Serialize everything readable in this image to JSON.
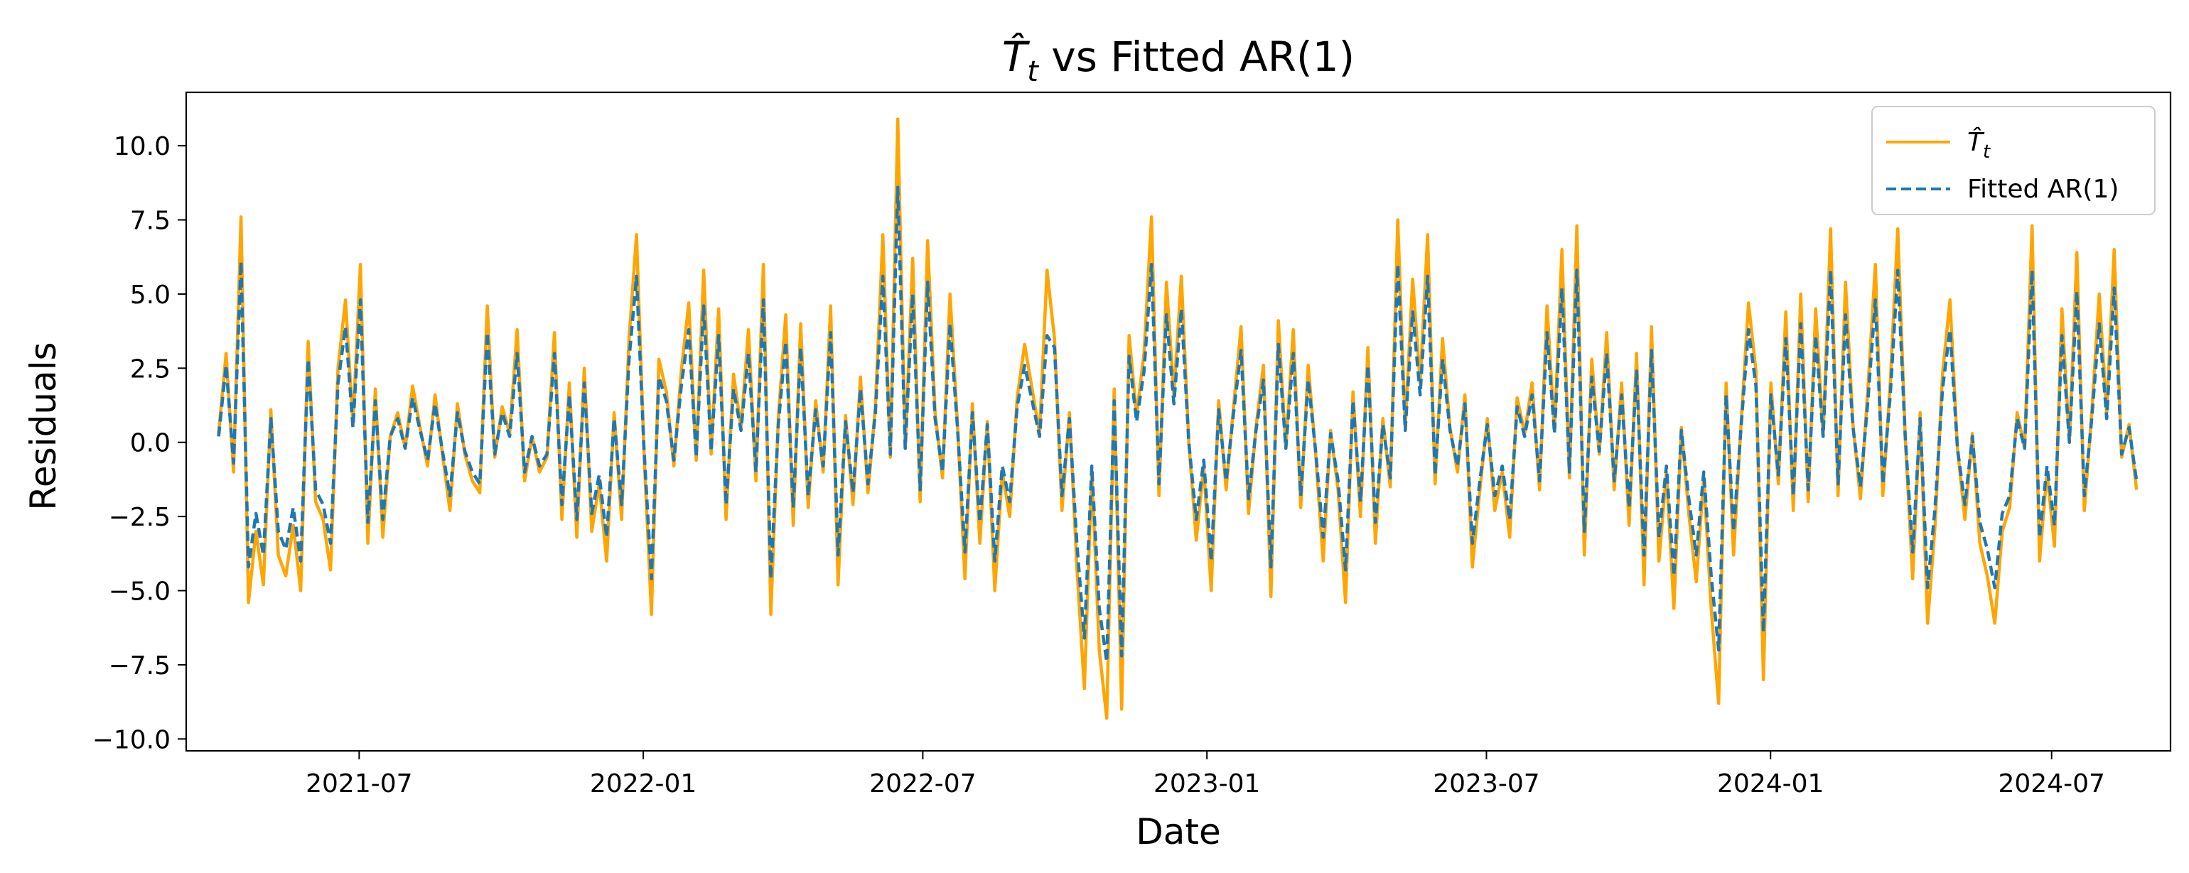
{
  "chart_data": {
    "type": "line",
    "title_main": "T̂",
    "title_sub": "t",
    "title_rest": " vs Fitted AR(1)",
    "xlabel": "Date",
    "ylabel": "Residuals",
    "xlim": [
      "2021-03-11",
      "2024-09-16"
    ],
    "ylim": [
      -10.4,
      11.8
    ],
    "x_ticks": [
      "2021-07",
      "2022-01",
      "2022-07",
      "2023-01",
      "2023-07",
      "2024-01",
      "2024-07"
    ],
    "y_ticks": [
      "10.0",
      "7.5",
      "5.0",
      "2.5",
      "0.0",
      "−2.5",
      "−5.0",
      "−7.5",
      "−10.0"
    ],
    "grid": false,
    "legend_position": "upper right",
    "series": [
      {
        "name_main": "T̂",
        "name_sub": "t",
        "color": "#ffa500",
        "style": "solid",
        "x_start": "2021-04-01",
        "x_end": "2024-08-25",
        "values": [
          0.3,
          3.0,
          -1.0,
          7.6,
          -5.4,
          -3.0,
          -4.8,
          1.1,
          -3.8,
          -4.5,
          -2.8,
          -5.0,
          3.4,
          -2.0,
          -2.6,
          -4.3,
          2.5,
          4.8,
          0.6,
          6.0,
          -3.4,
          1.8,
          -3.2,
          0.2,
          1.0,
          -0.2,
          1.9,
          0.5,
          -0.8,
          1.6,
          -0.4,
          -2.3,
          1.3,
          -0.4,
          -1.3,
          -1.7,
          4.6,
          -0.5,
          1.2,
          0.3,
          3.8,
          -1.3,
          0.2,
          -1.0,
          -0.5,
          3.7,
          -2.6,
          2.0,
          -3.2,
          2.5,
          -3.0,
          -1.4,
          -4.0,
          1.0,
          -2.6,
          3.5,
          7.0,
          -0.3,
          -5.8,
          2.8,
          1.7,
          -0.8,
          2.4,
          4.7,
          -0.6,
          5.8,
          -0.4,
          4.5,
          -2.6,
          2.3,
          0.5,
          3.8,
          -1.3,
          6.0,
          -5.8,
          0.8,
          4.3,
          -2.8,
          4.0,
          -2.2,
          1.4,
          -1.0,
          4.6,
          -4.8,
          0.9,
          -2.1,
          2.2,
          -1.7,
          1.2,
          7.0,
          -0.5,
          10.9,
          -0.2,
          6.2,
          -2.0,
          6.8,
          1.0,
          -1.2,
          5.0,
          0.6,
          -4.6,
          1.3,
          -3.4,
          0.7,
          -5.0,
          -1.0,
          -2.5,
          1.5,
          3.3,
          1.8,
          0.3,
          5.8,
          3.5,
          -2.3,
          1.0,
          -4.2,
          -8.3,
          -1.0,
          -7.0,
          -9.3,
          1.8,
          -9.0,
          3.6,
          0.9,
          3.0,
          7.6,
          -1.8,
          5.4,
          1.6,
          5.6,
          0.0,
          -3.3,
          -0.8,
          -5.0,
          1.4,
          -1.6,
          1.2,
          3.9,
          -2.4,
          0.5,
          2.6,
          -5.2,
          4.1,
          -0.2,
          3.8,
          -2.2,
          2.6,
          -0.4,
          -4.0,
          0.4,
          -1.6,
          -5.4,
          1.7,
          -2.5,
          3.2,
          -3.4,
          0.8,
          -1.5,
          7.5,
          0.5,
          5.5,
          2.0,
          7.0,
          -1.4,
          3.5,
          0.5,
          -1.0,
          1.6,
          -4.2,
          -1.6,
          0.8,
          -2.3,
          -1.0,
          -3.2,
          1.5,
          0.3,
          2.0,
          -1.6,
          4.6,
          0.4,
          6.5,
          -1.2,
          7.3,
          -3.8,
          2.8,
          -0.4,
          3.7,
          -1.6,
          2.0,
          -2.8,
          3.0,
          -4.8,
          3.9,
          -4.0,
          -1.0,
          -5.6,
          0.5,
          -2.4,
          -4.7,
          -1.2,
          -5.6,
          -8.8,
          2.0,
          -3.8,
          0.6,
          4.7,
          2.4,
          -8.0,
          2.0,
          -1.4,
          4.4,
          -2.3,
          5.0,
          -2.0,
          4.5,
          0.2,
          7.2,
          -1.8,
          5.4,
          0.6,
          -1.9,
          1.8,
          6.0,
          -1.8,
          2.0,
          7.2,
          0.2,
          -4.6,
          1.0,
          -6.1,
          -2.8,
          2.3,
          4.8,
          -0.2,
          -2.6,
          0.3,
          -3.4,
          -4.5,
          -6.1,
          -3.0,
          -2.2,
          1.0,
          -0.2,
          7.3,
          -4.0,
          -1.0,
          -3.5,
          4.5,
          0.0,
          6.4,
          -2.3,
          1.0,
          5.0,
          1.0,
          6.5,
          -0.5,
          0.6,
          -1.6
        ]
      },
      {
        "name": "Fitted AR(1)",
        "color": "#1f77b4",
        "style": "dashed",
        "x_start": "2021-04-01",
        "x_end": "2024-08-25",
        "values": [
          0.2,
          2.6,
          -0.7,
          6.1,
          -4.2,
          -2.4,
          -3.8,
          0.8,
          -3.0,
          -3.6,
          -2.2,
          -4.0,
          2.8,
          -1.6,
          -2.1,
          -3.4,
          2.0,
          3.9,
          0.5,
          4.8,
          -2.7,
          1.4,
          -2.6,
          0.2,
          0.8,
          -0.2,
          1.5,
          0.4,
          -0.6,
          1.3,
          -0.3,
          -1.8,
          1.0,
          -0.3,
          -1.0,
          -1.4,
          3.7,
          -0.4,
          1.0,
          0.2,
          3.0,
          -1.0,
          0.2,
          -0.8,
          -0.4,
          3.0,
          -2.1,
          1.6,
          -2.6,
          2.0,
          -2.4,
          -1.1,
          -3.2,
          0.8,
          -2.1,
          2.8,
          5.6,
          -0.2,
          -4.6,
          2.2,
          1.4,
          -0.6,
          1.9,
          3.8,
          -0.5,
          4.6,
          -0.3,
          3.6,
          -2.1,
          1.8,
          0.4,
          3.0,
          -1.0,
          4.8,
          -4.6,
          0.6,
          3.4,
          -2.2,
          3.2,
          -1.8,
          1.1,
          -0.8,
          3.7,
          -3.8,
          0.7,
          -1.7,
          1.8,
          -1.4,
          1.0,
          5.6,
          -0.4,
          8.6,
          -0.2,
          5.0,
          -1.6,
          5.4,
          0.8,
          -1.0,
          4.0,
          0.5,
          -3.7,
          1.0,
          -2.7,
          0.6,
          -4.0,
          -0.8,
          -2.0,
          1.2,
          2.6,
          1.4,
          0.2,
          3.6,
          3.2,
          -1.8,
          0.8,
          -3.4,
          -6.6,
          -0.8,
          -5.6,
          -7.4,
          1.4,
          -7.2,
          2.9,
          0.7,
          2.4,
          6.0,
          -1.4,
          4.3,
          1.3,
          4.5,
          0.0,
          -2.6,
          -0.6,
          -4.0,
          1.1,
          -1.3,
          1.0,
          3.1,
          -1.9,
          0.4,
          2.1,
          -4.2,
          3.3,
          -0.2,
          3.0,
          -1.8,
          2.1,
          -0.3,
          -3.2,
          0.3,
          -1.3,
          -4.3,
          1.4,
          -2.0,
          2.6,
          -2.7,
          0.6,
          -1.2,
          6.0,
          0.4,
          4.4,
          1.6,
          5.6,
          -1.1,
          2.8,
          0.4,
          -0.8,
          1.3,
          -3.4,
          -1.3,
          0.6,
          -1.8,
          -0.8,
          -2.6,
          1.2,
          0.2,
          1.6,
          -1.3,
          3.7,
          0.3,
          5.2,
          -1.0,
          5.8,
          -3.0,
          2.2,
          -0.3,
          3.0,
          -1.3,
          1.6,
          -2.2,
          2.4,
          -3.8,
          3.1,
          -3.2,
          -0.8,
          -4.5,
          0.4,
          -1.9,
          -3.8,
          -1.0,
          -4.5,
          -7.0,
          1.6,
          -3.0,
          0.5,
          3.8,
          1.9,
          -6.4,
          1.6,
          -1.1,
          3.5,
          -1.8,
          4.0,
          -1.6,
          3.6,
          0.2,
          5.8,
          -1.4,
          4.3,
          0.5,
          -1.5,
          1.4,
          4.8,
          -1.4,
          1.6,
          5.8,
          0.2,
          -3.7,
          0.8,
          -4.9,
          -2.2,
          1.8,
          3.8,
          -0.2,
          -2.1,
          0.2,
          -2.7,
          -3.6,
          -4.9,
          -2.4,
          -1.8,
          0.8,
          -0.2,
          5.8,
          -3.2,
          -0.8,
          -2.8,
          3.6,
          0.0,
          5.1,
          -1.8,
          0.8,
          4.0,
          0.8,
          5.2,
          -0.4,
          0.5,
          -1.3
        ]
      }
    ]
  }
}
